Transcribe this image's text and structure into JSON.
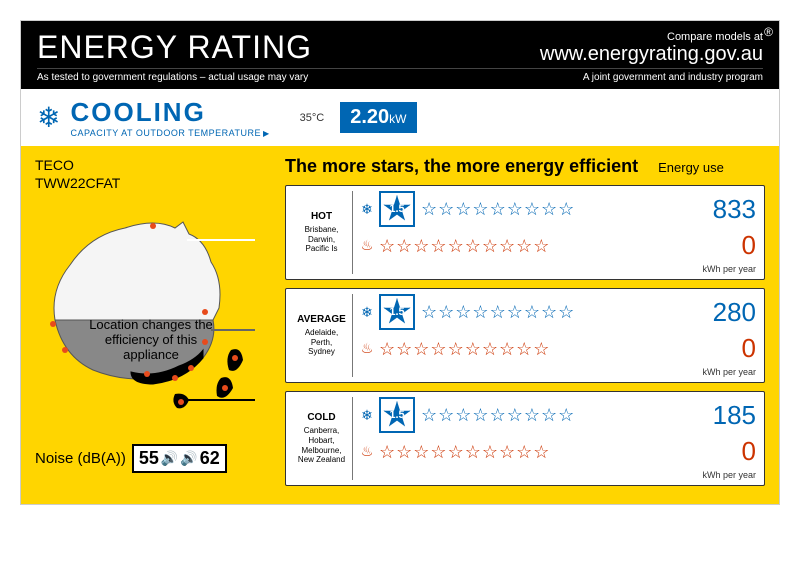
{
  "header": {
    "title": "ENERGY RATING",
    "compare": "Compare models at",
    "url": "www.energyrating.gov.au",
    "subleft": "As tested to government regulations – actual usage may vary",
    "subright": "A joint government and industry program",
    "reg": "®"
  },
  "cooling": {
    "label": "COOLING",
    "sub": "CAPACITY AT OUTDOOR TEMPERATURE",
    "temp": "35°C",
    "kw_value": "2.20",
    "kw_unit": "kW"
  },
  "product": {
    "brand": "TECO",
    "model": "TWW22CFAT"
  },
  "map": {
    "caption": "Location changes the efficiency of this appliance"
  },
  "noise": {
    "label": "Noise (dB(A))",
    "indoor": "55",
    "outdoor": "62"
  },
  "efficiency": {
    "title": "The more stars, the more energy efficient",
    "energy_use_label": "Energy use",
    "kwh_label": "kWh per year",
    "max_stars": 10
  },
  "zones": [
    {
      "name": "HOT",
      "cities": "Brisbane, Darwin, Pacific Is",
      "cool_rating": "1.5",
      "cool_kwh": "833",
      "heat_kwh": "0"
    },
    {
      "name": "AVERAGE",
      "cities": "Adelaide, Perth, Sydney",
      "cool_rating": "1.5",
      "cool_kwh": "280",
      "heat_kwh": "0"
    },
    {
      "name": "COLD",
      "cities": "Canberra, Hobart, Melbourne, New Zealand",
      "cool_rating": "1.5",
      "cool_kwh": "185",
      "heat_kwh": "0"
    }
  ],
  "colors": {
    "yellow_bg": "#ffd500",
    "cool_blue": "#0066b3",
    "heat_red": "#cc3300",
    "black": "#000000",
    "map_hot": "#f5f5f5",
    "map_avg": "#888888",
    "map_cold": "#000000",
    "city_dot": "#e84b1c"
  }
}
